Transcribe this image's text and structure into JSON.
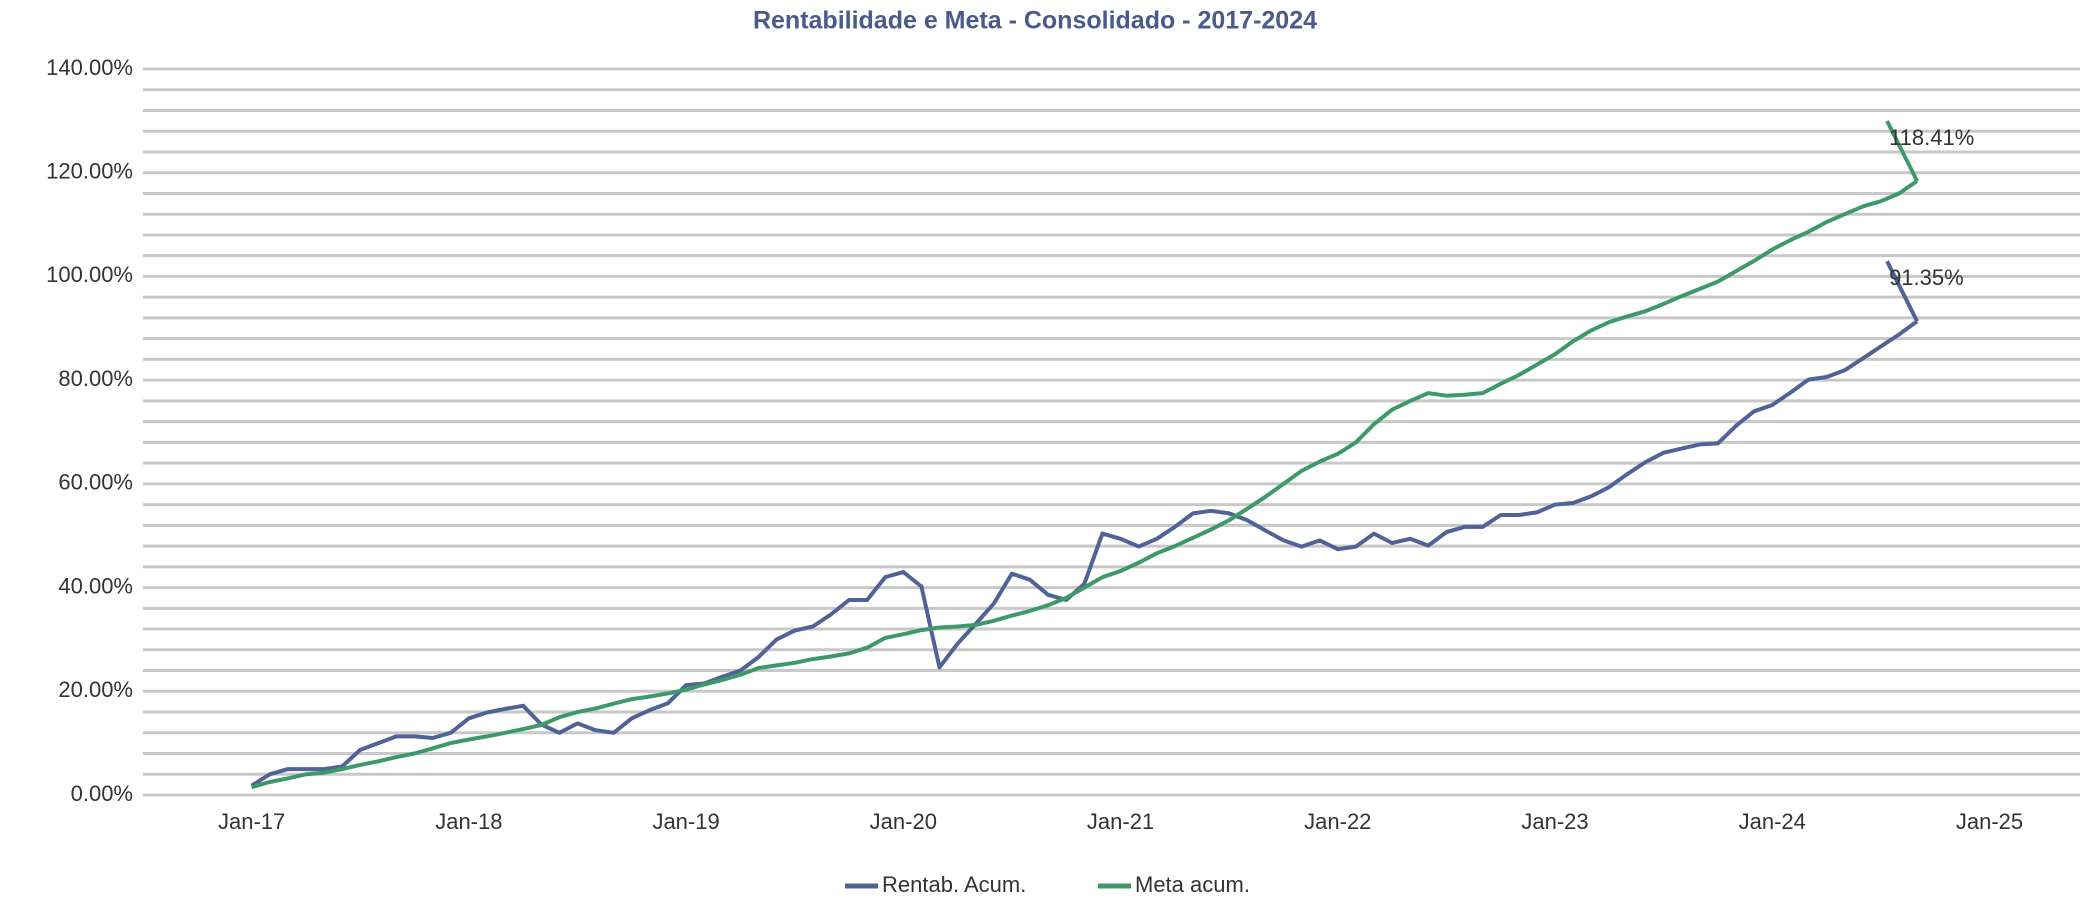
{
  "chart_data": {
    "type": "line",
    "title": "Rentabilidade e Meta - Consolidado - 2017-2024",
    "x": [
      "2017-01",
      "2017-02",
      "2017-03",
      "2017-04",
      "2017-05",
      "2017-06",
      "2017-07",
      "2017-08",
      "2017-09",
      "2017-10",
      "2017-11",
      "2017-12",
      "2018-01",
      "2018-02",
      "2018-03",
      "2018-04",
      "2018-05",
      "2018-06",
      "2018-07",
      "2018-08",
      "2018-09",
      "2018-10",
      "2018-11",
      "2018-12",
      "2019-01",
      "2019-02",
      "2019-03",
      "2019-04",
      "2019-05",
      "2019-06",
      "2019-07",
      "2019-08",
      "2019-09",
      "2019-10",
      "2019-11",
      "2019-12",
      "2020-01",
      "2020-02",
      "2020-03",
      "2020-04",
      "2020-05",
      "2020-06",
      "2020-07",
      "2020-08",
      "2020-09",
      "2020-10",
      "2020-11",
      "2020-12",
      "2021-01",
      "2021-02",
      "2021-03",
      "2021-04",
      "2021-05",
      "2021-06",
      "2021-07",
      "2021-08",
      "2021-09",
      "2021-10",
      "2021-11",
      "2021-12",
      "2022-01",
      "2022-02",
      "2022-03",
      "2022-04",
      "2022-05",
      "2022-06",
      "2022-07",
      "2022-08",
      "2022-09",
      "2022-10",
      "2022-11",
      "2022-12",
      "2023-01",
      "2023-02",
      "2023-03",
      "2023-04",
      "2023-05",
      "2023-06",
      "2023-07",
      "2023-08",
      "2023-09",
      "2023-10",
      "2023-11",
      "2023-12",
      "2024-01",
      "2024-02",
      "2024-03",
      "2024-04",
      "2024-05",
      "2024-06",
      "2024-07",
      "2024-08",
      "2024-09"
    ],
    "series": [
      {
        "name": "Rentab. Acum.",
        "color": "#4f6396",
        "values": [
          1.8,
          4,
          5,
          5,
          5,
          5.5,
          8.7,
          10,
          11.3,
          11.3,
          11,
          12,
          14.8,
          15.9,
          16.6,
          17.2,
          13.6,
          12,
          13.8,
          12.5,
          12,
          14.8,
          16.4,
          17.7,
          21.2,
          21.5,
          22.8,
          24,
          26.6,
          30,
          31.7,
          32.5,
          34.8,
          37.6,
          37.6,
          42,
          43,
          40.2,
          24.6,
          29.2,
          33,
          36.9,
          42.7,
          41.5,
          38.6,
          37.6,
          40.7,
          50.4,
          49.4,
          47.9,
          49.4,
          51.7,
          54.3,
          54.8,
          54.3,
          53,
          51,
          49.1,
          47.9,
          49.1,
          47.4,
          47.9,
          50.4,
          48.6,
          49.4,
          48.1,
          50.7,
          51.7,
          51.7,
          54,
          54,
          54.5,
          56,
          56.3,
          57.6,
          59.4,
          61.9,
          64.2,
          66,
          66.8,
          67.6,
          67.8,
          71.2,
          74,
          75.2,
          77.6,
          80.1,
          80.6,
          81.9,
          84.2,
          86.5,
          88.8,
          91.35
        ],
        "value_labels": {
          "92": "91.35%"
        }
      },
      {
        "name": "Meta acum.",
        "color": "#3d9a68",
        "values": [
          1.5,
          2.5,
          3.2,
          4,
          4.3,
          5,
          5.8,
          6.5,
          7.3,
          8,
          9,
          10,
          10.7,
          11.3,
          12,
          12.7,
          13.5,
          15,
          16,
          16.7,
          17.6,
          18.5,
          19,
          19.6,
          20.3,
          21.3,
          22.2,
          23.2,
          24.5,
          25,
          25.5,
          26.2,
          26.7,
          27.3,
          28.4,
          30.3,
          31,
          31.8,
          32.3,
          32.5,
          32.8,
          33.6,
          34.6,
          35.5,
          36.6,
          38,
          40,
          42,
          43.2,
          44.8,
          46.6,
          48,
          49.6,
          51.2,
          53,
          55.2,
          57.5,
          60,
          62.5,
          64.3,
          65.8,
          68,
          71.5,
          74.3,
          76,
          77.5,
          77,
          77.2,
          77.5,
          79.3,
          81,
          83,
          85,
          87.5,
          89.6,
          91.2,
          92.3,
          93.3,
          94.7,
          96.2,
          97.6,
          99,
          101,
          103,
          105.2,
          107,
          108.6,
          110.5,
          112,
          113.5,
          114.5,
          116,
          118.41
        ],
        "value_labels": {
          "92": "118.41%"
        }
      }
    ],
    "xlim": [
      "2016-07",
      "2025-06"
    ],
    "xticks": [
      {
        "value": "2017-01",
        "label": "Jan-17"
      },
      {
        "value": "2018-01",
        "label": "Jan-18"
      },
      {
        "value": "2019-01",
        "label": "Jan-19"
      },
      {
        "value": "2020-01",
        "label": "Jan-20"
      },
      {
        "value": "2021-01",
        "label": "Jan-21"
      },
      {
        "value": "2022-01",
        "label": "Jan-22"
      },
      {
        "value": "2023-01",
        "label": "Jan-23"
      },
      {
        "value": "2024-01",
        "label": "Jan-24"
      },
      {
        "value": "2025-01",
        "label": "Jan-25"
      }
    ],
    "ylim": [
      0,
      140
    ],
    "yticks": [
      {
        "value": 0,
        "label": "0.00%"
      },
      {
        "value": 20,
        "label": "20.00%"
      },
      {
        "value": 40,
        "label": "40.00%"
      },
      {
        "value": 60,
        "label": "60.00%"
      },
      {
        "value": 80,
        "label": "80.00%"
      },
      {
        "value": 100,
        "label": "100.00%"
      },
      {
        "value": 120,
        "label": "120.00%"
      },
      {
        "value": 140,
        "label": "140.00%"
      }
    ],
    "y_minor_ticks": [
      4,
      8,
      12,
      16,
      24,
      28,
      32,
      36,
      44,
      48,
      52,
      56,
      64,
      68,
      72,
      76,
      84,
      88,
      92,
      96,
      104,
      108,
      112,
      116,
      124,
      128,
      132,
      136
    ],
    "grid": true,
    "legend": "bottom"
  }
}
